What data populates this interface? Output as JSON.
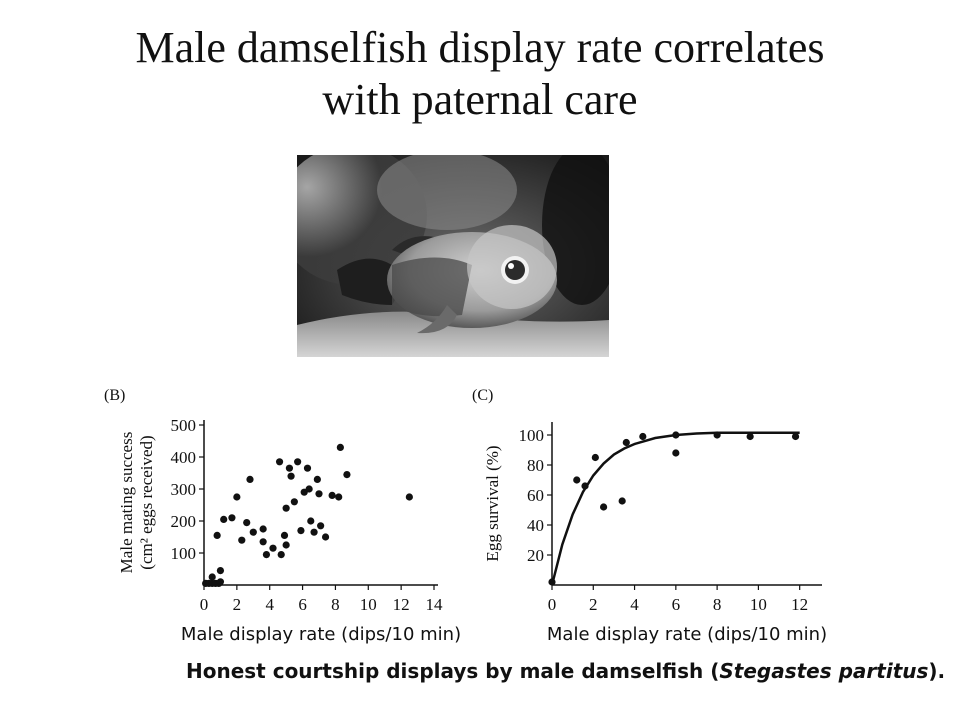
{
  "slide": {
    "title_line1": "Male damselfish display rate correlates",
    "title_line2": "with paternal care"
  },
  "photo": {
    "icon": "damselfish-photo",
    "description": "grayscale photograph of a damselfish"
  },
  "caption": {
    "prefix": "Honest courtship displays by male damselfish (",
    "species": "Stegastes partitus",
    "suffix": ")."
  },
  "chart_data": [
    {
      "type": "scatter",
      "panel": "(B)",
      "title": "",
      "xlabel": "Male display rate (dips/10 min)",
      "ylabel_line1": "Male mating success",
      "ylabel_line2": "(cm² eggs received)",
      "xlim": [
        0,
        14
      ],
      "ylim": [
        0,
        500
      ],
      "xticks": [
        "0",
        "2",
        "4",
        "6",
        "8",
        "10",
        "12",
        "14"
      ],
      "yticks": [
        "100",
        "200",
        "300",
        "400",
        "500"
      ],
      "grid": false,
      "points": [
        {
          "x": 0.1,
          "y": 5
        },
        {
          "x": 0.3,
          "y": 5
        },
        {
          "x": 0.5,
          "y": 5
        },
        {
          "x": 0.7,
          "y": 5
        },
        {
          "x": 0.9,
          "y": 5
        },
        {
          "x": 1.0,
          "y": 10
        },
        {
          "x": 0.5,
          "y": 25
        },
        {
          "x": 1.0,
          "y": 45
        },
        {
          "x": 0.8,
          "y": 155
        },
        {
          "x": 1.2,
          "y": 205
        },
        {
          "x": 1.7,
          "y": 210
        },
        {
          "x": 2.0,
          "y": 275
        },
        {
          "x": 2.3,
          "y": 140
        },
        {
          "x": 2.6,
          "y": 195
        },
        {
          "x": 2.8,
          "y": 330
        },
        {
          "x": 3.0,
          "y": 165
        },
        {
          "x": 3.6,
          "y": 175
        },
        {
          "x": 3.6,
          "y": 135
        },
        {
          "x": 3.8,
          "y": 95
        },
        {
          "x": 4.2,
          "y": 115
        },
        {
          "x": 4.7,
          "y": 95
        },
        {
          "x": 4.6,
          "y": 385
        },
        {
          "x": 4.9,
          "y": 155
        },
        {
          "x": 5.0,
          "y": 125
        },
        {
          "x": 5.0,
          "y": 240
        },
        {
          "x": 5.2,
          "y": 365
        },
        {
          "x": 5.3,
          "y": 340
        },
        {
          "x": 5.5,
          "y": 260
        },
        {
          "x": 5.7,
          "y": 385
        },
        {
          "x": 5.9,
          "y": 170
        },
        {
          "x": 6.1,
          "y": 290
        },
        {
          "x": 6.3,
          "y": 365
        },
        {
          "x": 6.4,
          "y": 300
        },
        {
          "x": 6.5,
          "y": 200
        },
        {
          "x": 6.7,
          "y": 165
        },
        {
          "x": 6.9,
          "y": 330
        },
        {
          "x": 7.0,
          "y": 285
        },
        {
          "x": 7.1,
          "y": 185
        },
        {
          "x": 7.4,
          "y": 150
        },
        {
          "x": 7.8,
          "y": 280
        },
        {
          "x": 8.2,
          "y": 275
        },
        {
          "x": 8.3,
          "y": 430
        },
        {
          "x": 8.7,
          "y": 345
        },
        {
          "x": 12.5,
          "y": 275
        }
      ]
    },
    {
      "type": "scatter",
      "panel": "(C)",
      "title": "",
      "xlabel": "Male display rate (dips/10 min)",
      "ylabel": "Egg survival (%)",
      "xlim": [
        0,
        12.5
      ],
      "ylim": [
        0,
        110
      ],
      "xticks": [
        "0",
        "2",
        "4",
        "6",
        "8",
        "10",
        "12"
      ],
      "yticks": [
        "20",
        "40",
        "60",
        "80",
        "100"
      ],
      "grid": false,
      "points": [
        {
          "x": 0.0,
          "y": 2
        },
        {
          "x": 1.2,
          "y": 70
        },
        {
          "x": 1.6,
          "y": 66
        },
        {
          "x": 2.1,
          "y": 85
        },
        {
          "x": 2.5,
          "y": 52
        },
        {
          "x": 3.4,
          "y": 56
        },
        {
          "x": 3.6,
          "y": 95
        },
        {
          "x": 4.4,
          "y": 99
        },
        {
          "x": 6.0,
          "y": 100
        },
        {
          "x": 6.0,
          "y": 88
        },
        {
          "x": 8.0,
          "y": 100
        },
        {
          "x": 9.6,
          "y": 99
        },
        {
          "x": 11.8,
          "y": 99
        }
      ],
      "fit_curve": {
        "type": "saturating",
        "x": [
          0,
          0.5,
          1,
          1.5,
          2,
          2.5,
          3,
          3.5,
          4,
          5,
          6,
          7,
          8,
          9,
          10,
          11,
          12
        ],
        "y": [
          0,
          27,
          47,
          62,
          73,
          81,
          87,
          91,
          94,
          98,
          100,
          101,
          101.5,
          101.5,
          101.5,
          101.5,
          101.5
        ]
      }
    }
  ]
}
